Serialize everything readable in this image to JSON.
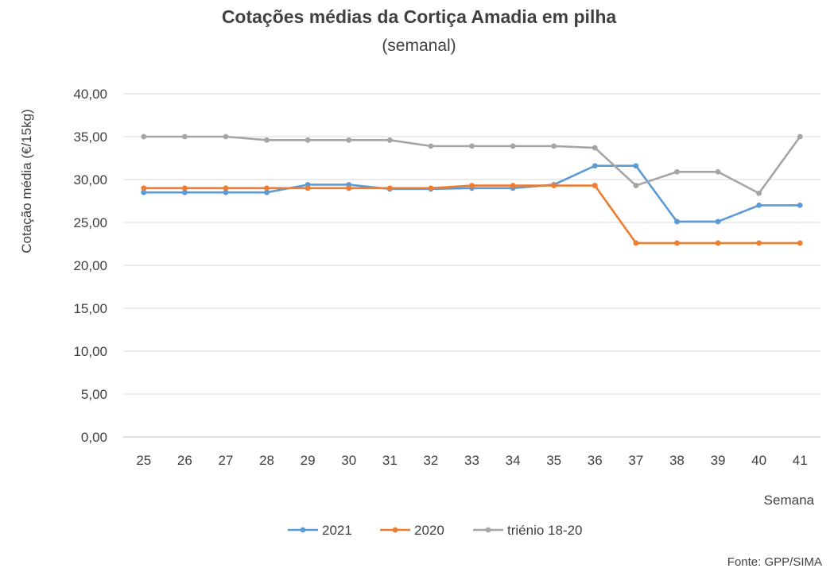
{
  "chart_data": {
    "type": "line",
    "title": "Cotações médias da Cortiça Amadia em pilha",
    "subtitle": "(semanal)",
    "xlabel": "Semana",
    "ylabel": "Cotação média (€/15kg)",
    "ylim": [
      0,
      40
    ],
    "yticks": [
      "0,00",
      "5,00",
      "10,00",
      "15,00",
      "20,00",
      "25,00",
      "30,00",
      "35,00",
      "40,00"
    ],
    "categories": [
      "25",
      "26",
      "27",
      "28",
      "29",
      "30",
      "31",
      "32",
      "33",
      "34",
      "35",
      "36",
      "37",
      "38",
      "39",
      "40",
      "41"
    ],
    "grid": true,
    "legend_position": "bottom",
    "series": [
      {
        "name": "2021",
        "color": "#5B9BD5",
        "values": [
          28.5,
          28.5,
          28.5,
          28.5,
          29.4,
          29.4,
          28.9,
          28.9,
          29.0,
          29.0,
          29.4,
          31.6,
          31.6,
          25.1,
          25.1,
          27.0,
          27.0
        ]
      },
      {
        "name": "2020",
        "color": "#ED7D31",
        "values": [
          29.0,
          29.0,
          29.0,
          29.0,
          29.0,
          29.0,
          29.0,
          29.0,
          29.3,
          29.3,
          29.3,
          29.3,
          22.6,
          22.6,
          22.6,
          22.6,
          22.6
        ]
      },
      {
        "name": "triénio 18-20",
        "color": "#A5A5A5",
        "values": [
          35.0,
          35.0,
          35.0,
          34.6,
          34.6,
          34.6,
          34.6,
          33.9,
          33.9,
          33.9,
          33.9,
          33.7,
          29.3,
          30.9,
          30.9,
          28.4,
          35.0
        ]
      }
    ],
    "source": "Fonte:  GPP/SIMA"
  }
}
